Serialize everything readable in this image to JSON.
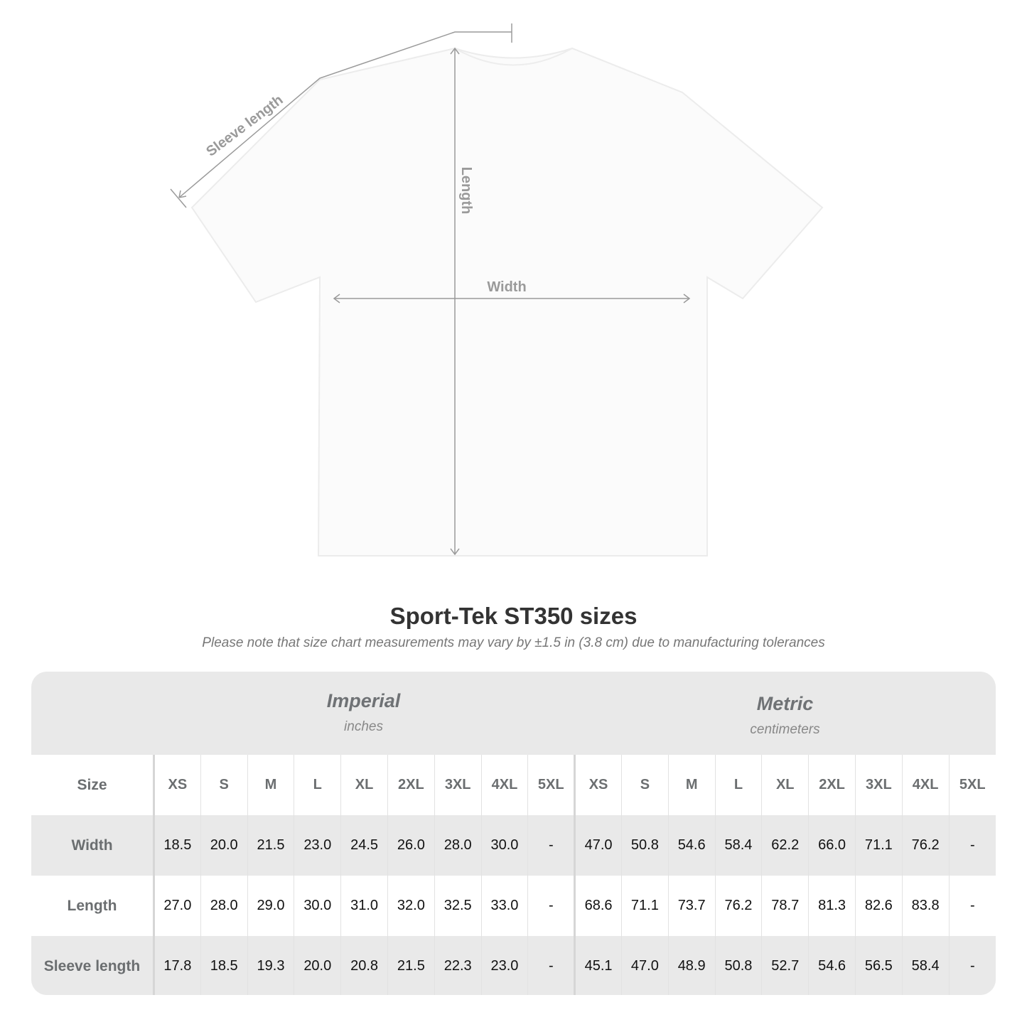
{
  "diagram": {
    "labels": {
      "sleeve": "Sleeve length",
      "length": "Length",
      "width": "Width"
    }
  },
  "title": "Sport-Tek ST350 sizes",
  "subtitle": "Please note that size chart measurements may vary by ±1.5 in (3.8 cm) due to manufacturing tolerances",
  "imperial": {
    "title": "Imperial",
    "unit": "inches"
  },
  "metric": {
    "title": "Metric",
    "unit": "centimeters"
  },
  "size_label": "Size",
  "sizes": [
    "XS",
    "S",
    "M",
    "L",
    "XL",
    "2XL",
    "3XL",
    "4XL",
    "5XL"
  ],
  "rows": [
    {
      "label": "Width",
      "imperial": [
        "18.5",
        "20.0",
        "21.5",
        "23.0",
        "24.5",
        "26.0",
        "28.0",
        "30.0",
        "-"
      ],
      "metric": [
        "47.0",
        "50.8",
        "54.6",
        "58.4",
        "62.2",
        "66.0",
        "71.1",
        "76.2",
        "-"
      ]
    },
    {
      "label": "Length",
      "imperial": [
        "27.0",
        "28.0",
        "29.0",
        "30.0",
        "31.0",
        "32.0",
        "32.5",
        "33.0",
        "-"
      ],
      "metric": [
        "68.6",
        "71.1",
        "73.7",
        "76.2",
        "78.7",
        "81.3",
        "82.6",
        "83.8",
        "-"
      ]
    },
    {
      "label": "Sleeve length",
      "imperial": [
        "17.8",
        "18.5",
        "19.3",
        "20.0",
        "20.8",
        "21.5",
        "22.3",
        "23.0",
        "-"
      ],
      "metric": [
        "45.1",
        "47.0",
        "48.9",
        "50.8",
        "52.7",
        "54.6",
        "56.5",
        "58.4",
        "-"
      ]
    }
  ]
}
